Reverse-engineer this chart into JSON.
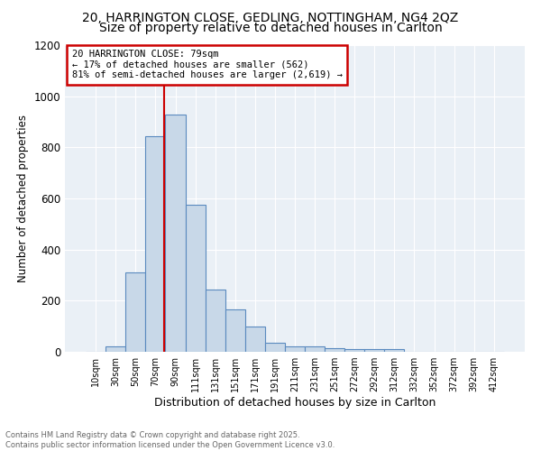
{
  "title1": "20, HARRINGTON CLOSE, GEDLING, NOTTINGHAM, NG4 2QZ",
  "title2": "Size of property relative to detached houses in Carlton",
  "xlabel": "Distribution of detached houses by size in Carlton",
  "ylabel": "Number of detached properties",
  "bar_labels": [
    "10sqm",
    "30sqm",
    "50sqm",
    "70sqm",
    "90sqm",
    "111sqm",
    "131sqm",
    "151sqm",
    "171sqm",
    "191sqm",
    "211sqm",
    "231sqm",
    "251sqm",
    "272sqm",
    "292sqm",
    "312sqm",
    "332sqm",
    "352sqm",
    "372sqm",
    "392sqm",
    "412sqm"
  ],
  "bar_values": [
    0,
    20,
    310,
    845,
    930,
    575,
    245,
    165,
    100,
    35,
    20,
    20,
    15,
    10,
    10,
    10,
    0,
    0,
    0,
    0,
    0
  ],
  "bar_color": "#c8d8e8",
  "bar_edge_color": "#5a8abf",
  "property_line_color": "#cc0000",
  "annotation_text": "20 HARRINGTON CLOSE: 79sqm\n← 17% of detached houses are smaller (562)\n81% of semi-detached houses are larger (2,619) →",
  "annotation_box_color": "#cc0000",
  "ylim": [
    0,
    1200
  ],
  "yticks": [
    0,
    200,
    400,
    600,
    800,
    1000,
    1200
  ],
  "bg_color": "#eaf0f6",
  "footnote": "Contains HM Land Registry data © Crown copyright and database right 2025.\nContains public sector information licensed under the Open Government Licence v3.0.",
  "title1_fontsize": 10,
  "title2_fontsize": 10,
  "bar_width": 1.0,
  "line_x_index": 3.45
}
